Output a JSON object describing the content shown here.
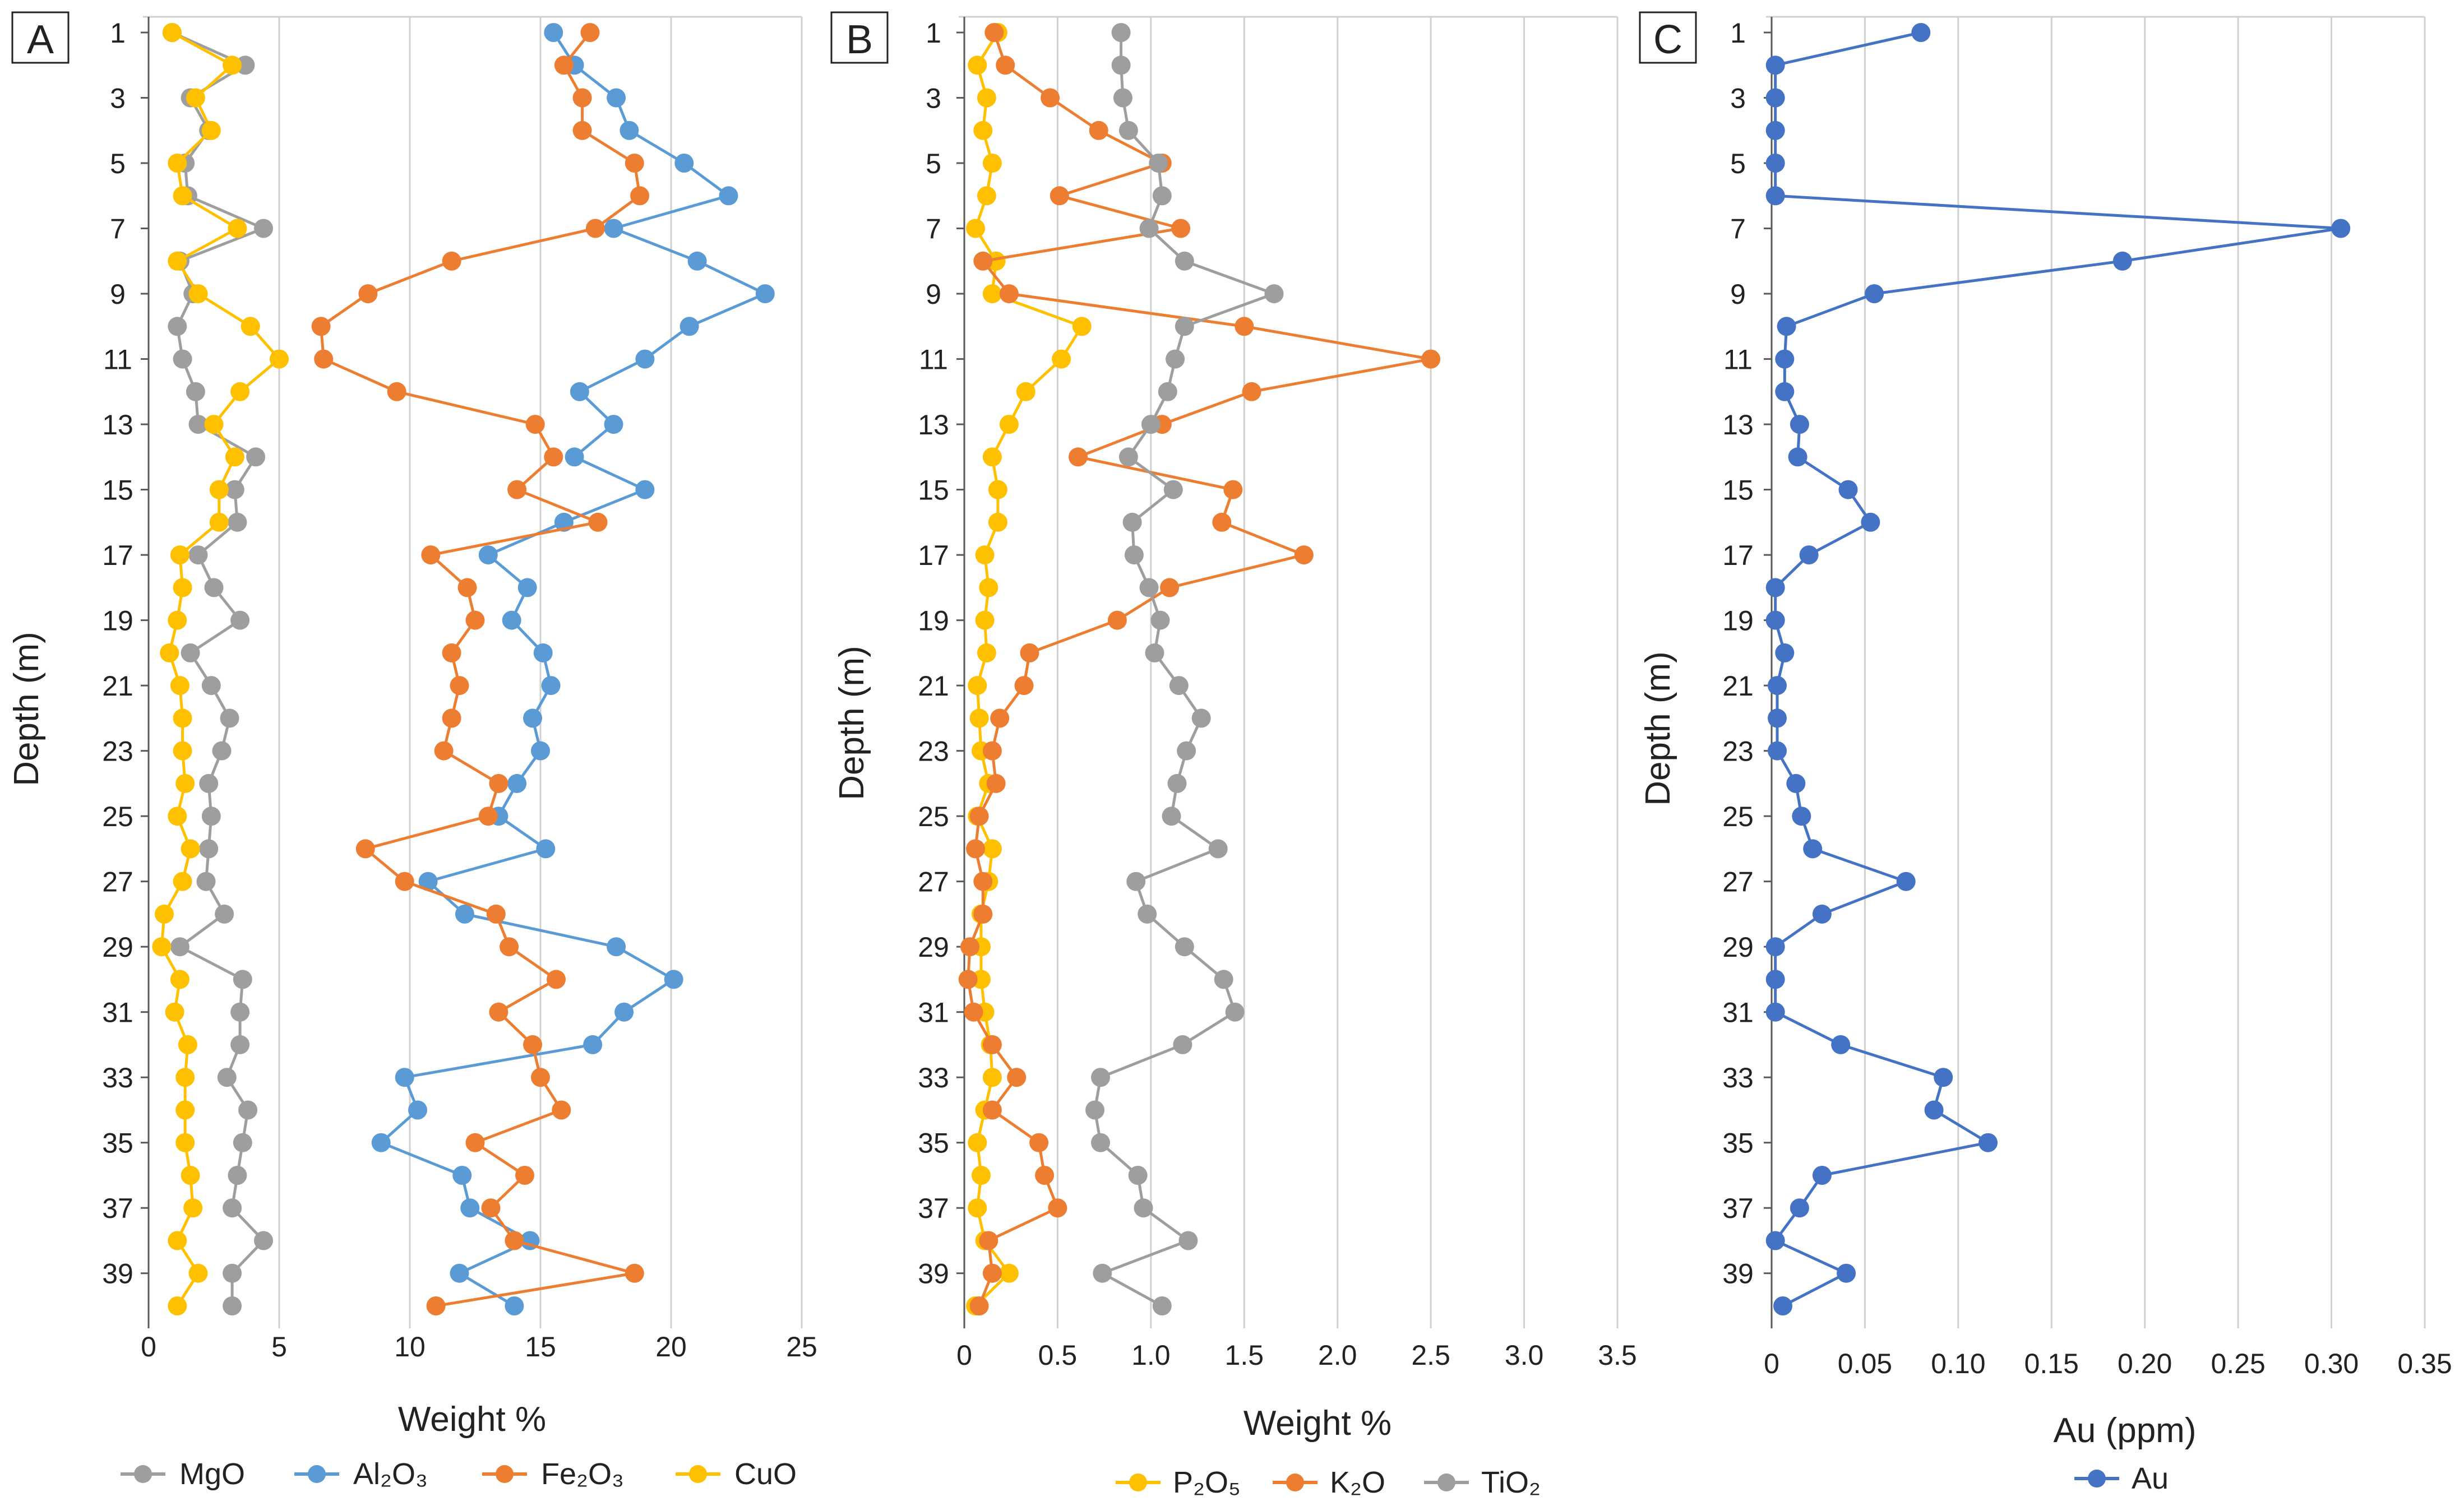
{
  "colors": {
    "MgO": "#9e9e9e",
    "Al2O3": "#5b9bd5",
    "Fe2O3": "#ed7d31",
    "CuO": "#ffc000",
    "P2O5": "#ffc000",
    "K2O": "#ed7d31",
    "TiO2": "#9e9e9e",
    "Au": "#4472c4",
    "grid": "#d0d0d0",
    "axis": "#595959"
  },
  "chart_data": [
    {
      "panel": "A",
      "type": "line",
      "xlabel": "Weight %",
      "ylabel": "Depth (m)",
      "xlim": [
        0,
        25
      ],
      "ylim": [
        1,
        40
      ],
      "xticks": [
        "0",
        "5",
        "10",
        "15",
        "20",
        "25"
      ],
      "yticks": [
        "1",
        "3",
        "5",
        "7",
        "9",
        "11",
        "13",
        "15",
        "17",
        "19",
        "21",
        "23",
        "25",
        "27",
        "29",
        "31",
        "33",
        "35",
        "37",
        "39"
      ],
      "depth": [
        1,
        2,
        3,
        4,
        5,
        6,
        7,
        8,
        9,
        10,
        11,
        12,
        13,
        14,
        15,
        16,
        17,
        18,
        19,
        20,
        21,
        22,
        23,
        24,
        25,
        26,
        27,
        28,
        29,
        30,
        31,
        32,
        33,
        34,
        35,
        36,
        37,
        38,
        39,
        40
      ],
      "legend": [
        "MgO",
        "Al₂O₃",
        "Fe₂O₃",
        "CuO"
      ],
      "series": [
        {
          "name": "MgO",
          "key": "MgO",
          "values": [
            0.9,
            3.7,
            1.6,
            2.3,
            1.4,
            1.5,
            4.4,
            1.2,
            1.7,
            1.1,
            1.3,
            1.8,
            1.9,
            4.1,
            3.3,
            3.4,
            1.9,
            2.5,
            3.5,
            1.6,
            2.4,
            3.1,
            2.8,
            2.3,
            2.4,
            2.3,
            2.2,
            2.9,
            1.2,
            3.6,
            3.5,
            3.5,
            3.0,
            3.8,
            3.6,
            3.4,
            3.2,
            4.4,
            3.2,
            3.2
          ]
        },
        {
          "name": "Al₂O₃",
          "key": "Al2O3",
          "values": [
            15.5,
            16.3,
            17.9,
            18.4,
            20.5,
            22.2,
            17.8,
            21.0,
            23.6,
            20.7,
            19.0,
            16.5,
            17.8,
            16.3,
            19.0,
            15.9,
            13.0,
            14.5,
            13.9,
            15.1,
            15.4,
            14.7,
            15.0,
            14.1,
            13.4,
            15.2,
            10.7,
            12.1,
            17.9,
            20.1,
            18.2,
            17.0,
            9.8,
            10.3,
            8.9,
            12.0,
            12.3,
            14.6,
            11.9,
            14.0
          ]
        },
        {
          "name": "Fe₂O₃",
          "key": "Fe2O3",
          "values": [
            16.9,
            15.9,
            16.6,
            16.6,
            18.6,
            18.8,
            17.1,
            11.6,
            8.4,
            6.6,
            6.7,
            9.5,
            14.8,
            15.5,
            14.1,
            17.2,
            10.8,
            12.2,
            12.5,
            11.6,
            11.9,
            11.6,
            11.3,
            13.4,
            13.0,
            8.3,
            9.8,
            13.3,
            13.8,
            15.6,
            13.4,
            14.7,
            15.0,
            15.8,
            12.5,
            14.4,
            13.1,
            14.0,
            18.6,
            11.0
          ]
        },
        {
          "name": "CuO",
          "key": "CuO",
          "values": [
            0.9,
            3.2,
            1.8,
            2.4,
            1.1,
            1.3,
            3.4,
            1.1,
            1.9,
            3.9,
            5.0,
            3.5,
            2.5,
            3.3,
            2.7,
            2.7,
            1.2,
            1.3,
            1.1,
            0.8,
            1.2,
            1.3,
            1.3,
            1.4,
            1.1,
            1.6,
            1.3,
            0.6,
            0.5,
            1.2,
            1.0,
            1.5,
            1.4,
            1.4,
            1.4,
            1.6,
            1.7,
            1.1,
            1.9,
            1.1
          ]
        }
      ]
    },
    {
      "panel": "B",
      "type": "line",
      "xlabel": "Weight %",
      "ylabel": "Depth (m)",
      "xlim": [
        0,
        3.5
      ],
      "ylim": [
        1,
        40
      ],
      "xticks": [
        "0",
        "0.5",
        "1.0",
        "1.5",
        "2.0",
        "2.5",
        "3.0",
        "3.5"
      ],
      "yticks": [
        "1",
        "3",
        "5",
        "7",
        "9",
        "11",
        "13",
        "15",
        "17",
        "19",
        "21",
        "23",
        "25",
        "27",
        "29",
        "31",
        "33",
        "35",
        "37",
        "39"
      ],
      "depth": [
        1,
        2,
        3,
        4,
        5,
        6,
        7,
        8,
        9,
        10,
        11,
        12,
        13,
        14,
        15,
        16,
        17,
        18,
        19,
        20,
        21,
        22,
        23,
        24,
        25,
        26,
        27,
        28,
        29,
        30,
        31,
        32,
        33,
        34,
        35,
        36,
        37,
        38,
        39,
        40
      ],
      "legend": [
        "P₂O₅",
        "K₂O",
        "TiO₂"
      ],
      "series": [
        {
          "name": "P₂O₅",
          "key": "P2O5",
          "values": [
            0.18,
            0.07,
            0.12,
            0.1,
            0.15,
            0.12,
            0.06,
            0.17,
            0.15,
            0.63,
            0.52,
            0.33,
            0.24,
            0.15,
            0.18,
            0.18,
            0.11,
            0.13,
            0.11,
            0.12,
            0.07,
            0.08,
            0.09,
            0.13,
            0.07,
            0.15,
            0.13,
            0.09,
            0.09,
            0.09,
            0.11,
            0.14,
            0.15,
            0.11,
            0.07,
            0.09,
            0.07,
            0.11,
            0.24,
            0.06
          ]
        },
        {
          "name": "K₂O",
          "key": "K2O",
          "values": [
            0.16,
            0.22,
            0.46,
            0.72,
            1.06,
            0.51,
            1.16,
            0.1,
            0.24,
            1.5,
            2.5,
            1.54,
            1.06,
            0.61,
            1.44,
            1.38,
            1.82,
            1.1,
            0.82,
            0.35,
            0.32,
            0.19,
            0.15,
            0.17,
            0.08,
            0.06,
            0.1,
            0.1,
            0.03,
            0.02,
            0.05,
            0.15,
            0.28,
            0.15,
            0.4,
            0.43,
            0.5,
            0.13,
            0.15,
            0.08
          ]
        },
        {
          "name": "TiO₂",
          "key": "TiO2",
          "values": [
            0.84,
            0.84,
            0.85,
            0.88,
            1.04,
            1.06,
            0.99,
            1.18,
            1.66,
            1.18,
            1.13,
            1.09,
            1.0,
            0.88,
            1.12,
            0.9,
            0.91,
            0.99,
            1.05,
            1.02,
            1.15,
            1.27,
            1.19,
            1.14,
            1.11,
            1.36,
            0.92,
            0.98,
            1.18,
            1.39,
            1.45,
            1.17,
            0.73,
            0.7,
            0.73,
            0.93,
            0.96,
            1.2,
            0.74,
            1.06
          ]
        }
      ]
    },
    {
      "panel": "C",
      "type": "line",
      "xlabel": "Au (ppm)",
      "ylabel": "Depth (m)",
      "xlim": [
        0,
        0.35
      ],
      "ylim": [
        1,
        40
      ],
      "xticks": [
        "0",
        "0.05",
        "0.10",
        "0.15",
        "0.20",
        "0.25",
        "0.30",
        "0.35"
      ],
      "yticks": [
        "1",
        "3",
        "5",
        "7",
        "9",
        "11",
        "13",
        "15",
        "17",
        "19",
        "21",
        "23",
        "25",
        "27",
        "29",
        "31",
        "33",
        "35",
        "37",
        "39"
      ],
      "depth": [
        1,
        2,
        3,
        4,
        5,
        6,
        7,
        8,
        9,
        10,
        11,
        12,
        13,
        14,
        15,
        16,
        17,
        18,
        19,
        20,
        21,
        22,
        23,
        24,
        25,
        26,
        27,
        28,
        29,
        30,
        31,
        32,
        33,
        34,
        35,
        36,
        37,
        38,
        39,
        40
      ],
      "legend": [
        "Au"
      ],
      "series": [
        {
          "name": "Au",
          "key": "Au",
          "values": [
            0.08,
            0.002,
            0.002,
            0.002,
            0.002,
            0.002,
            0.305,
            0.188,
            0.055,
            0.008,
            0.007,
            0.007,
            0.015,
            0.014,
            0.041,
            0.053,
            0.02,
            0.002,
            0.002,
            0.007,
            0.003,
            0.003,
            0.003,
            0.013,
            0.016,
            0.022,
            0.072,
            0.027,
            0.002,
            0.002,
            0.002,
            0.037,
            0.092,
            0.087,
            0.116,
            0.027,
            0.015,
            0.002,
            0.04,
            0.006
          ]
        }
      ]
    }
  ]
}
